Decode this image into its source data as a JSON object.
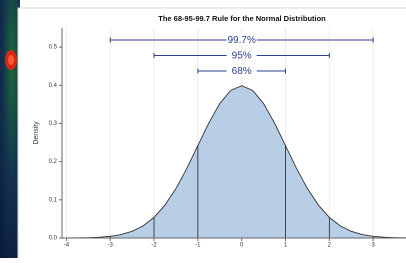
{
  "chart_data": {
    "type": "area",
    "title": "The 68-95-99.7 Rule for the Normal Distribution",
    "y_label": "Density",
    "x": [
      -4,
      -3.75,
      -3.5,
      -3.25,
      -3,
      -2.75,
      -2.5,
      -2.25,
      -2,
      -1.75,
      -1.5,
      -1.25,
      -1,
      -0.75,
      -0.5,
      -0.25,
      0,
      0.25,
      0.5,
      0.75,
      1,
      1.25,
      1.5,
      1.75,
      2,
      2.25,
      2.5,
      2.75,
      3,
      3.25,
      3.5,
      3.75
    ],
    "series": [
      {
        "name": "Density",
        "color": "#b8cde6",
        "values": [
          0.0001,
          0.0004,
          0.0009,
          0.002,
          0.0044,
          0.0091,
          0.0175,
          0.0317,
          0.054,
          0.0863,
          0.1295,
          0.1826,
          0.242,
          0.3011,
          0.3521,
          0.3867,
          0.3989,
          0.3867,
          0.3521,
          0.3011,
          0.242,
          0.1826,
          0.1295,
          0.0863,
          0.054,
          0.0317,
          0.0175,
          0.0091,
          0.0044,
          0.002,
          0.0009,
          0.0004
        ]
      }
    ],
    "reference_lines": [
      -3,
      -2,
      -1,
      1,
      2,
      3
    ],
    "intervals": [
      {
        "label": "99.7%",
        "lo": -3,
        "hi": 3
      },
      {
        "label": "95%",
        "lo": -2,
        "hi": 2
      },
      {
        "label": "68%",
        "lo": -1,
        "hi": 1
      }
    ],
    "xlim": [
      -4.1,
      3.75
    ],
    "xticks": [
      -4,
      -3,
      -2,
      -1,
      0,
      1,
      2,
      3
    ],
    "ylim": [
      0,
      0.55
    ],
    "yticks": [
      {
        "value": 0,
        "label": "0.0"
      },
      0.1,
      0.2,
      0.3,
      0.4,
      0.5
    ],
    "grid": true
  }
}
